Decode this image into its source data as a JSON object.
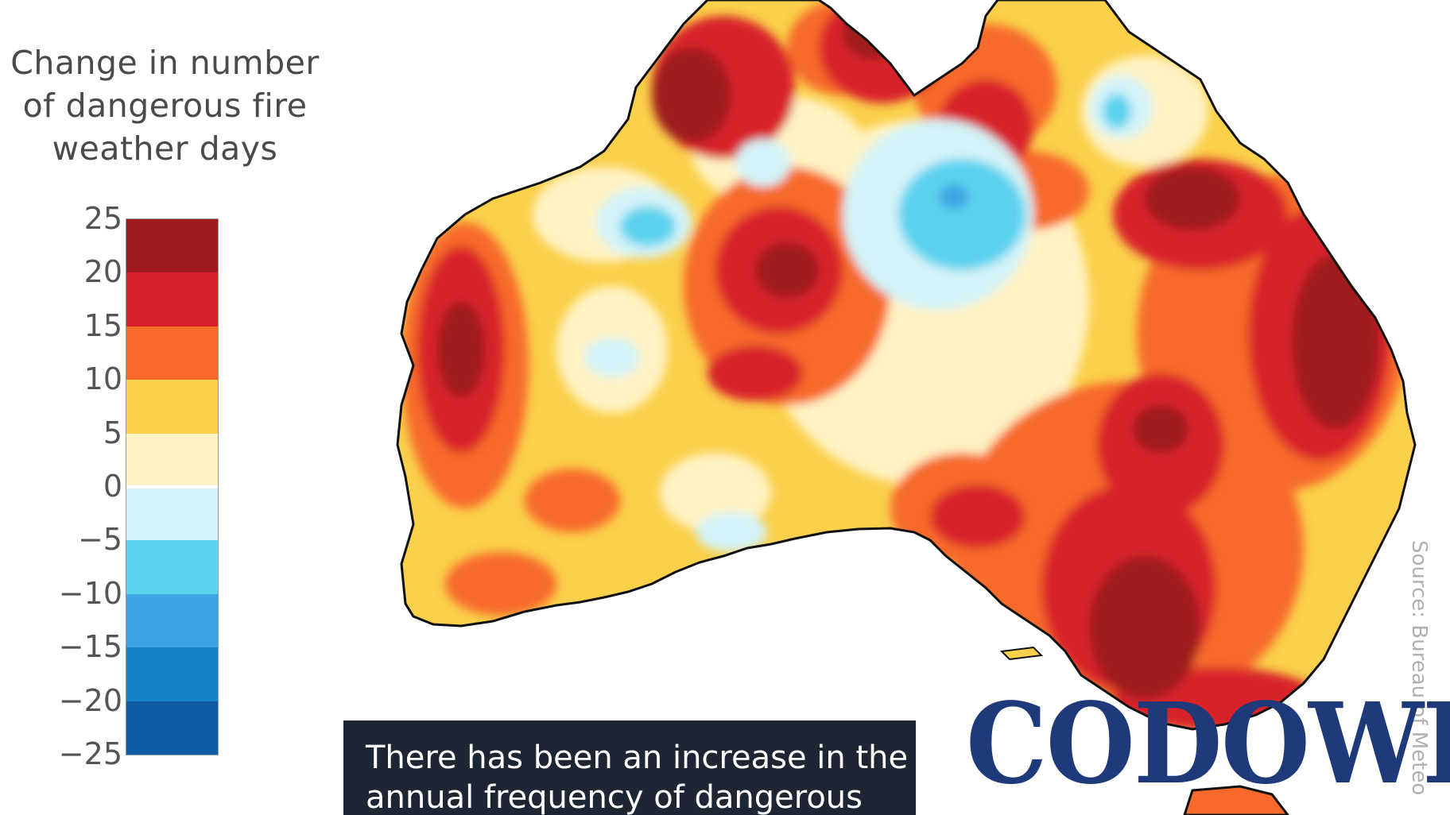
{
  "legend": {
    "title_lines": [
      "Change in number",
      "of dangerous fire",
      "weather days"
    ],
    "ticks": [
      "25",
      "20",
      "15",
      "10",
      "5",
      "0",
      "−5",
      "−10",
      "−15",
      "−20",
      "−25"
    ],
    "bins": [
      {
        "from": 20,
        "to": 25,
        "color": "#9e1a1f"
      },
      {
        "from": 15,
        "to": 20,
        "color": "#d8202a"
      },
      {
        "from": 10,
        "to": 15,
        "color": "#f76a2a"
      },
      {
        "from": 5,
        "to": 10,
        "color": "#fbd04a"
      },
      {
        "from": 0,
        "to": 5,
        "color": "#fff3c4"
      },
      {
        "from": -5,
        "to": 0,
        "color": "#d3f3f8"
      },
      {
        "from": -10,
        "to": -5,
        "color": "#5cd2ef"
      },
      {
        "from": -15,
        "to": -10,
        "color": "#3aa5e0"
      },
      {
        "from": -20,
        "to": -15,
        "color": "#1681c9"
      },
      {
        "from": -25,
        "to": -20,
        "color": "#0e5ca3"
      }
    ]
  },
  "caption": {
    "lines": [
      "There has been an increase in the",
      "annual frequency of dangerous"
    ]
  },
  "source": "Source: Bureau of Meteo",
  "logo": "CODOWL"
}
